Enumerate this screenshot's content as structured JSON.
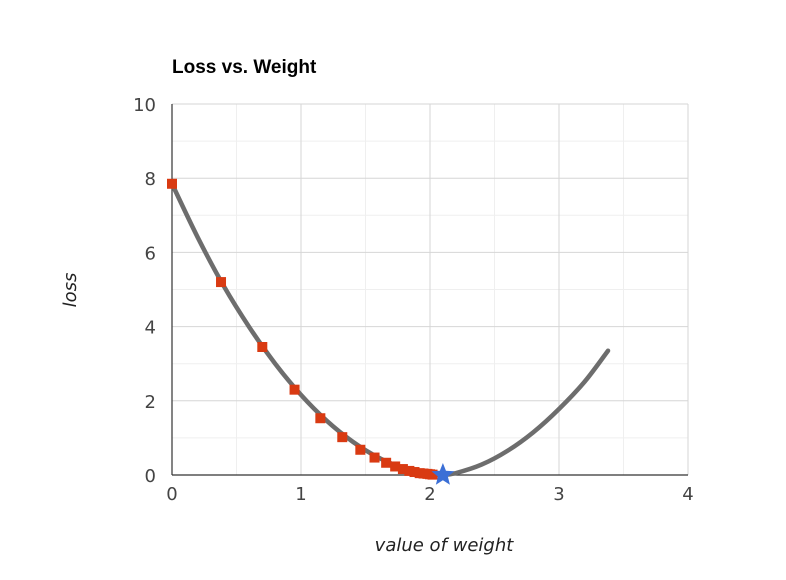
{
  "chart_data": {
    "type": "line",
    "title": "Loss vs. Weight",
    "xlabel": "value of weight",
    "ylabel": "loss",
    "xlim": [
      0,
      4
    ],
    "ylim": [
      0,
      10
    ],
    "x_ticks": [
      "0",
      "1",
      "2",
      "3",
      "4"
    ],
    "y_ticks": [
      "0",
      "2",
      "4",
      "6",
      "8",
      "10"
    ],
    "grid": true,
    "series": [
      {
        "name": "",
        "kind": "curve",
        "color": "#6d6d6d",
        "x": [
          0,
          0.2,
          0.4,
          0.6,
          0.8,
          1.0,
          1.2,
          1.4,
          1.6,
          1.8,
          2.0,
          2.1,
          2.2,
          2.4,
          2.6,
          2.8,
          3.0,
          3.2,
          3.38
        ],
        "y": [
          7.85,
          6.4,
          5.1,
          3.98,
          3.0,
          2.16,
          1.46,
          0.9,
          0.47,
          0.18,
          0.02,
          0.0,
          0.05,
          0.28,
          0.65,
          1.15,
          1.78,
          2.52,
          3.35
        ]
      },
      {
        "name": "",
        "kind": "markers",
        "color": "#d93a12",
        "x": [
          0,
          0.38,
          0.7,
          0.95,
          1.15,
          1.32,
          1.46,
          1.57,
          1.66,
          1.73,
          1.79,
          1.84,
          1.88,
          1.92,
          1.95,
          1.98,
          2.0,
          2.02
        ],
        "y": [
          7.85,
          5.2,
          3.45,
          2.3,
          1.53,
          1.02,
          0.68,
          0.47,
          0.33,
          0.23,
          0.16,
          0.11,
          0.08,
          0.05,
          0.04,
          0.03,
          0.02,
          0.01
        ]
      },
      {
        "name": "",
        "kind": "star",
        "color": "#3b6fd6",
        "x": [
          2.1
        ],
        "y": [
          0.0
        ]
      }
    ]
  }
}
